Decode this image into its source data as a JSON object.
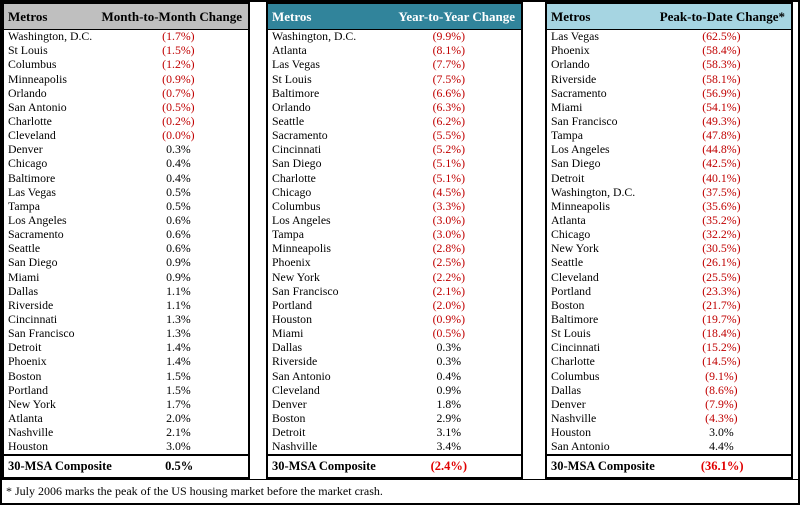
{
  "colors": {
    "negative_value": "#C00000",
    "composite_negative": "#E00000",
    "table_border": "#000000",
    "month_header_bg": "#BFBFBF",
    "year_header_bg": "#31849B",
    "peak_header_bg": "#A6D5E2"
  },
  "footnote": "* July 2006 marks the peak of the US housing market before the market crash.",
  "chart_data": [
    {
      "type": "table",
      "title": "Month-to-Month Change",
      "columns": [
        "Metros",
        "Month-to-Month Change"
      ],
      "header_bg": "#BFBFBF",
      "header_fg": "#000000",
      "rows": [
        [
          "Washington, D.C.",
          "(1.7%)"
        ],
        [
          "St Louis",
          "(1.5%)"
        ],
        [
          "Columbus",
          "(1.2%)"
        ],
        [
          "Minneapolis",
          "(0.9%)"
        ],
        [
          "Orlando",
          "(0.7%)"
        ],
        [
          "San Antonio",
          "(0.5%)"
        ],
        [
          "Charlotte",
          "(0.2%)"
        ],
        [
          "Cleveland",
          "(0.0%)"
        ],
        [
          "Denver",
          "0.3%"
        ],
        [
          "Chicago",
          "0.4%"
        ],
        [
          "Baltimore",
          "0.4%"
        ],
        [
          "Las Vegas",
          "0.5%"
        ],
        [
          "Tampa",
          "0.5%"
        ],
        [
          "Los Angeles",
          "0.6%"
        ],
        [
          "Sacramento",
          "0.6%"
        ],
        [
          "Seattle",
          "0.6%"
        ],
        [
          "San Diego",
          "0.9%"
        ],
        [
          "Miami",
          "0.9%"
        ],
        [
          "Dallas",
          "1.1%"
        ],
        [
          "Riverside",
          "1.1%"
        ],
        [
          "Cincinnati",
          "1.3%"
        ],
        [
          "San Francisco",
          "1.3%"
        ],
        [
          "Detroit",
          "1.4%"
        ],
        [
          "Phoenix",
          "1.4%"
        ],
        [
          "Boston",
          "1.5%"
        ],
        [
          "Portland",
          "1.5%"
        ],
        [
          "New York",
          "1.7%"
        ],
        [
          "Atlanta",
          "2.0%"
        ],
        [
          "Nashville",
          "2.1%"
        ],
        [
          "Houston",
          "3.0%"
        ]
      ],
      "composite": [
        "30-MSA Composite",
        "0.5%"
      ]
    },
    {
      "type": "table",
      "title": "Year-to-Year Change",
      "columns": [
        "Metros",
        "Year-to-Year Change"
      ],
      "header_bg": "#31849B",
      "header_fg": "#FFFFFF",
      "rows": [
        [
          "Washington, D.C.",
          "(9.9%)"
        ],
        [
          "Atlanta",
          "(8.1%)"
        ],
        [
          "Las Vegas",
          "(7.7%)"
        ],
        [
          "St Louis",
          "(7.5%)"
        ],
        [
          "Baltimore",
          "(6.6%)"
        ],
        [
          "Orlando",
          "(6.3%)"
        ],
        [
          "Seattle",
          "(6.2%)"
        ],
        [
          "Sacramento",
          "(5.5%)"
        ],
        [
          "Cincinnati",
          "(5.2%)"
        ],
        [
          "San Diego",
          "(5.1%)"
        ],
        [
          "Charlotte",
          "(5.1%)"
        ],
        [
          "Chicago",
          "(4.5%)"
        ],
        [
          "Columbus",
          "(3.3%)"
        ],
        [
          "Los Angeles",
          "(3.0%)"
        ],
        [
          "Tampa",
          "(3.0%)"
        ],
        [
          "Minneapolis",
          "(2.8%)"
        ],
        [
          "Phoenix",
          "(2.5%)"
        ],
        [
          "New York",
          "(2.2%)"
        ],
        [
          "San Francisco",
          "(2.1%)"
        ],
        [
          "Portland",
          "(2.0%)"
        ],
        [
          "Houston",
          "(0.9%)"
        ],
        [
          "Miami",
          "(0.5%)"
        ],
        [
          "Dallas",
          "0.3%"
        ],
        [
          "Riverside",
          "0.3%"
        ],
        [
          "San Antonio",
          "0.4%"
        ],
        [
          "Cleveland",
          "0.9%"
        ],
        [
          "Denver",
          "1.8%"
        ],
        [
          "Boston",
          "2.9%"
        ],
        [
          "Detroit",
          "3.1%"
        ],
        [
          "Nashville",
          "3.4%"
        ]
      ],
      "composite": [
        "30-MSA Composite",
        "(2.4%)"
      ]
    },
    {
      "type": "table",
      "title": "Peak-to-Date Change*",
      "columns": [
        "Metros",
        "Peak-to-Date Change*"
      ],
      "header_bg": "#A6D5E2",
      "header_fg": "#000000",
      "rows": [
        [
          "Las Vegas",
          "(62.5%)"
        ],
        [
          "Phoenix",
          "(58.4%)"
        ],
        [
          "Orlando",
          "(58.3%)"
        ],
        [
          "Riverside",
          "(58.1%)"
        ],
        [
          "Sacramento",
          "(56.9%)"
        ],
        [
          "Miami",
          "(54.1%)"
        ],
        [
          "San Francisco",
          "(49.3%)"
        ],
        [
          "Tampa",
          "(47.8%)"
        ],
        [
          "Los Angeles",
          "(44.8%)"
        ],
        [
          "San Diego",
          "(42.5%)"
        ],
        [
          "Detroit",
          "(40.1%)"
        ],
        [
          "Washington, D.C.",
          "(37.5%)"
        ],
        [
          "Minneapolis",
          "(35.6%)"
        ],
        [
          "Atlanta",
          "(35.2%)"
        ],
        [
          "Chicago",
          "(32.2%)"
        ],
        [
          "New York",
          "(30.5%)"
        ],
        [
          "Seattle",
          "(26.1%)"
        ],
        [
          "Cleveland",
          "(25.5%)"
        ],
        [
          "Portland",
          "(23.3%)"
        ],
        [
          "Boston",
          "(21.7%)"
        ],
        [
          "Baltimore",
          "(19.7%)"
        ],
        [
          "St Louis",
          "(18.4%)"
        ],
        [
          "Cincinnati",
          "(15.2%)"
        ],
        [
          "Charlotte",
          "(14.5%)"
        ],
        [
          "Columbus",
          "(9.1%)"
        ],
        [
          "Dallas",
          "(8.6%)"
        ],
        [
          "Denver",
          "(7.9%)"
        ],
        [
          "Nashville",
          "(4.3%)"
        ],
        [
          "Houston",
          "3.0%"
        ],
        [
          "San Antonio",
          "4.4%"
        ]
      ],
      "composite": [
        "30-MSA Composite",
        "(36.1%)"
      ]
    }
  ]
}
